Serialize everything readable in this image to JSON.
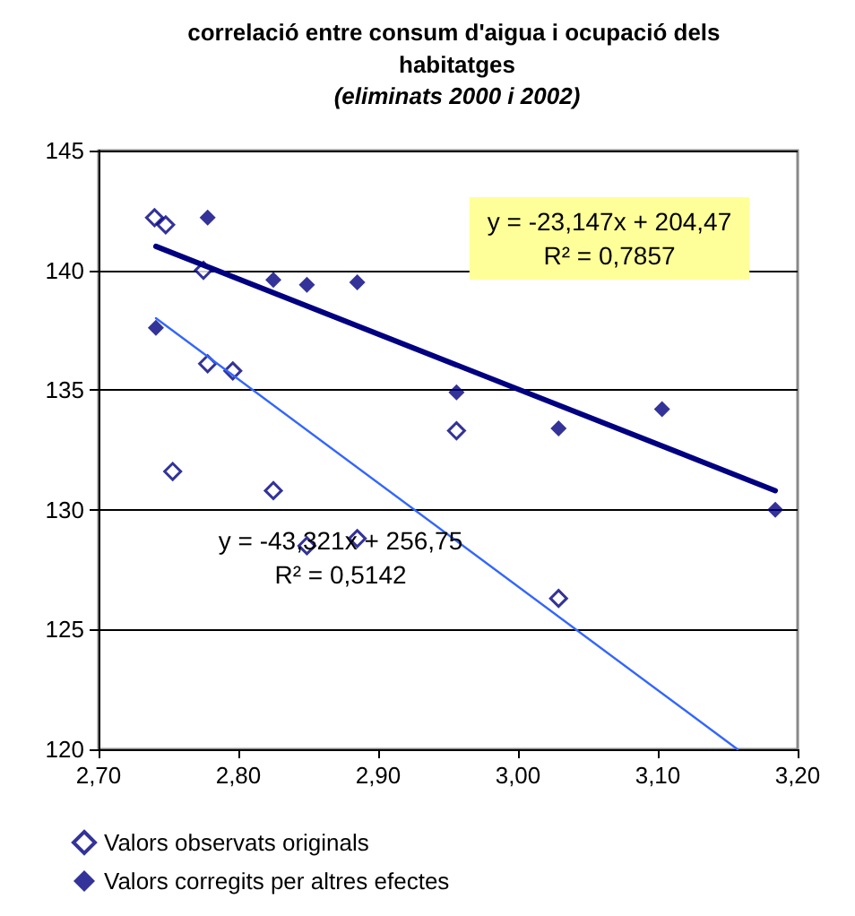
{
  "chart_data": {
    "type": "scatter",
    "title": "correlació entre consum d'aigua i ocupació dels habitatges",
    "subtitle": "(eliminats 2000 i 2002)",
    "xlim": [
      2.7,
      3.2
    ],
    "xticks": [
      {
        "value": 2.7,
        "label": "2,70"
      },
      {
        "value": 2.8,
        "label": "2,80"
      },
      {
        "value": 2.9,
        "label": "2,90"
      },
      {
        "value": 3.0,
        "label": "3,00"
      },
      {
        "value": 3.1,
        "label": "3,10"
      },
      {
        "value": 3.2,
        "label": "3,20"
      }
    ],
    "ylim": [
      120,
      145
    ],
    "yticks": [
      120,
      125,
      130,
      135,
      140,
      145
    ],
    "grid": "y",
    "legend": "bottom",
    "marker": "diamond",
    "series": [
      {
        "name": "Valors observats originals",
        "color": "#000080",
        "x": [
          2.74,
          2.748,
          2.775,
          2.778,
          2.796,
          2.753,
          2.825,
          2.849,
          2.885,
          2.956,
          3.029
        ],
        "values": [
          142.2,
          141.9,
          140.0,
          136.1,
          135.8,
          131.6,
          130.8,
          128.5,
          128.8,
          133.3,
          126.3
        ]
      },
      {
        "name": "Valors corregits per altres efectes",
        "color": "#000080",
        "x": [
          2.741,
          2.778,
          2.825,
          2.849,
          2.885,
          2.956,
          3.029,
          3.103,
          3.184
        ],
        "values": [
          137.6,
          142.2,
          139.6,
          139.4,
          139.5,
          134.9,
          133.4,
          134.2,
          130.0
        ]
      },
      {
        "type": "line",
        "marker": "none",
        "color": "#000080",
        "x": [
          2.741,
          3.184
        ],
        "values": [
          141.0,
          130.8
        ]
      },
      {
        "type": "line",
        "marker": "none",
        "color": "#3366ff",
        "x": [
          2.741,
          3.157
        ],
        "values": [
          138.0,
          120.0
        ]
      }
    ],
    "annotations": [
      "y = -23,147x + 204,47\nR² = 0,7857",
      "y = -43,321x + 256,75\nR² = 0,5142"
    ]
  }
}
